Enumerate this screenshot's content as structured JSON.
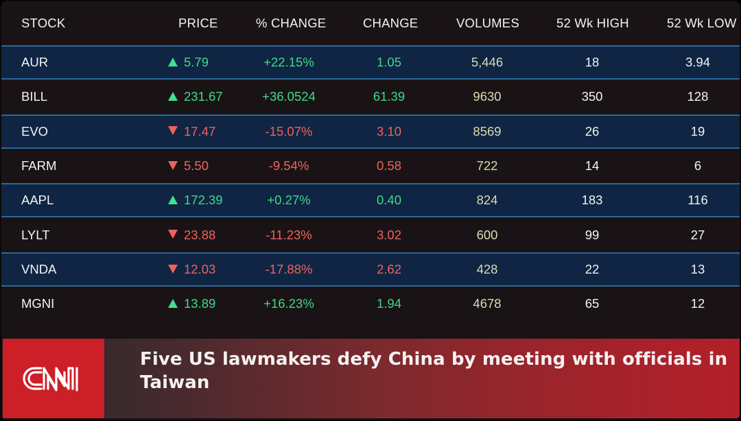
{
  "table": {
    "headers": {
      "stock": "STOCK",
      "price": "PRICE",
      "pct_change": "% CHANGE",
      "change": "CHANGE",
      "volumes": "VOLUMES",
      "high_52wk": "52 Wk HIGH",
      "low_52wk": "52 Wk LOW"
    },
    "rows": [
      {
        "stock": "AUR",
        "direction": "up",
        "price": "5.79",
        "pct_change": "+22.15%",
        "change": "1.05",
        "volume": "5,446",
        "high": "18",
        "low": "3.94"
      },
      {
        "stock": "BILL",
        "direction": "up",
        "price": "231.67",
        "pct_change": "+36.0524",
        "change": "61.39",
        "volume": "9630",
        "high": "350",
        "low": "128"
      },
      {
        "stock": "EVO",
        "direction": "down",
        "price": "17.47",
        "pct_change": "-15.07%",
        "change": "3.10",
        "volume": "8569",
        "high": "26",
        "low": "19"
      },
      {
        "stock": "FARM",
        "direction": "down",
        "price": "5.50",
        "pct_change": "-9.54%",
        "change": "0.58",
        "volume": "722",
        "high": "14",
        "low": "6"
      },
      {
        "stock": "AAPL",
        "direction": "up",
        "price": "172.39",
        "pct_change": "+0.27%",
        "change": "0.40",
        "volume": "824",
        "high": "183",
        "low": "116"
      },
      {
        "stock": "LYLT",
        "direction": "down",
        "price": "23.88",
        "pct_change": "-11.23%",
        "change": "3.02",
        "volume": "600",
        "high": "99",
        "low": "27"
      },
      {
        "stock": "VNDA",
        "direction": "down",
        "price": "12.03",
        "pct_change": "-17.88%",
        "change": "2.62",
        "volume": "428",
        "high": "22",
        "low": "13"
      },
      {
        "stock": "MGNI",
        "direction": "up",
        "price": "13.89",
        "pct_change": "+16.23%",
        "change": "1.94",
        "volume": "4678",
        "high": "65",
        "low": "12"
      }
    ]
  },
  "banner": {
    "logo": "CNN",
    "headline": "Five US lawmakers defy China by meeting with officials in Taiwan"
  },
  "colors": {
    "up": "#3fd98a",
    "down": "#f0625c",
    "row_alt_bg": "#0f2543",
    "row_separator": "#2a6a9a",
    "background": "#1a1315",
    "volume_text": "#d7dcb0",
    "cnn_red": "#cc1f28"
  },
  "icons": {
    "up": "triangle-up-icon",
    "down": "triangle-down-icon"
  }
}
